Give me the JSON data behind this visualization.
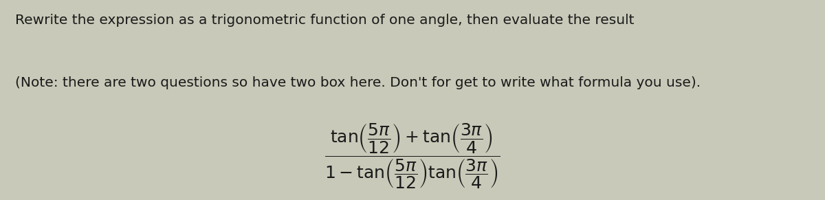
{
  "background_color": "#c8c9b8",
  "title_line1": "Rewrite the expression as a trigonometric function of one angle, then evaluate the result",
  "title_line2": "(Note: there are two questions so have two box here. Don't for get to write what formula you use).",
  "title_fontsize": 14.5,
  "note_fontsize": 14.5,
  "text_color": "#1a1a1a",
  "fig_width": 12.0,
  "fig_height": 2.91
}
